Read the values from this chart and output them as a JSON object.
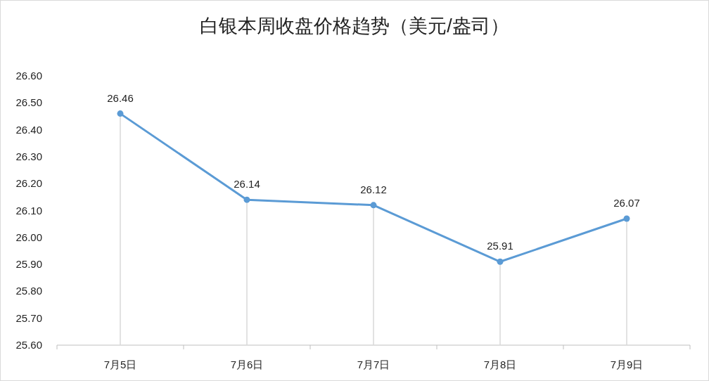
{
  "chart_data": {
    "type": "line",
    "title": "白银本周收盘价格趋势（美元/盎司）",
    "categories": [
      "7月5日",
      "7月6日",
      "7月7日",
      "7月8日",
      "7月9日"
    ],
    "series": [
      {
        "color": "#5b9bd5",
        "values": [
          26.46,
          26.14,
          26.12,
          25.91,
          26.07
        ]
      }
    ],
    "ylim": [
      25.6,
      26.6
    ],
    "yticks": [
      {
        "value": 25.6,
        "label": "25.60"
      },
      {
        "value": 25.7,
        "label": "25.70"
      },
      {
        "value": 25.8,
        "label": "25.80"
      },
      {
        "value": 25.9,
        "label": "25.90"
      },
      {
        "value": 26.0,
        "label": "26.00"
      },
      {
        "value": 26.1,
        "label": "26.10"
      },
      {
        "value": 26.2,
        "label": "26.20"
      },
      {
        "value": 26.3,
        "label": "26.30"
      },
      {
        "value": 26.4,
        "label": "26.40"
      },
      {
        "value": 26.5,
        "label": "26.50"
      },
      {
        "value": 26.6,
        "label": "26.60"
      }
    ],
    "data_labels": true,
    "marker": "circle",
    "grid": "x"
  }
}
